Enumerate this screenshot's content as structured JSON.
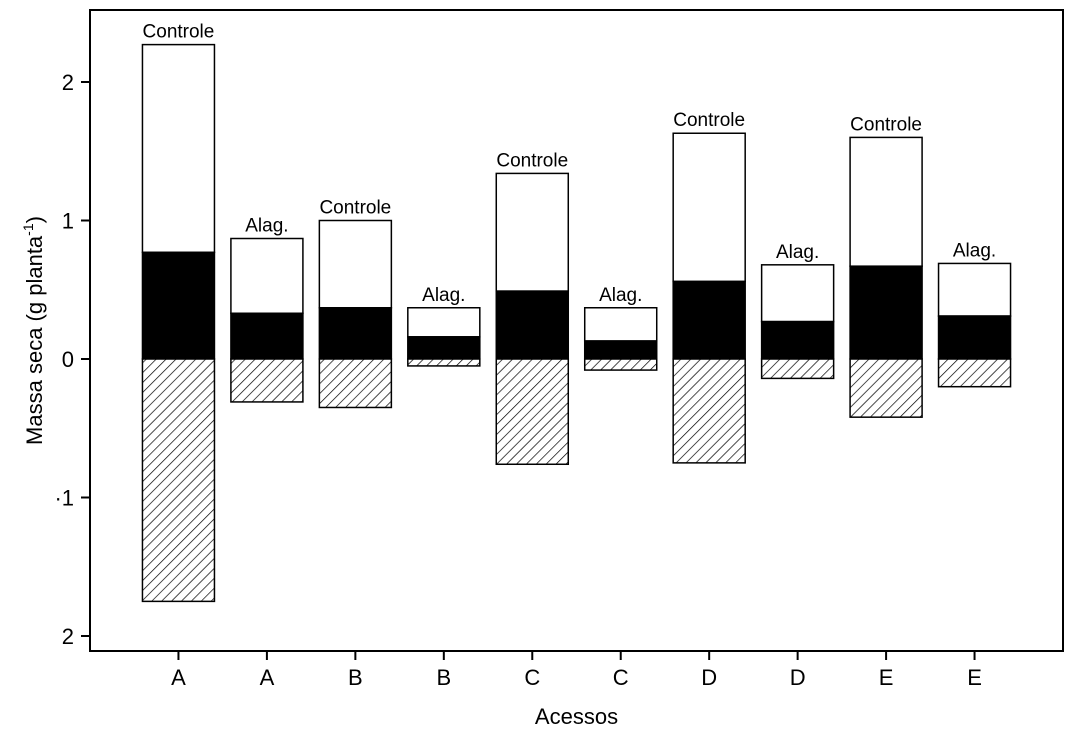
{
  "chart_data": {
    "type": "bar",
    "stacked": true,
    "xlabel": "Acessos",
    "ylabel": "Massa seca (g planta",
    "ylabel_sup": "-1",
    "ylabel_close": ")",
    "ylim": [
      -2.1,
      2.5
    ],
    "yticks": [
      {
        "value": 2,
        "label": "2"
      },
      {
        "value": 1,
        "label": "1"
      },
      {
        "value": 0,
        "label": "0"
      },
      {
        "value": -1,
        "label": "·1"
      },
      {
        "value": -2,
        "label": "2"
      }
    ],
    "categories": [
      "A",
      "A",
      "B",
      "B",
      "C",
      "C",
      "D",
      "D",
      "E",
      "E"
    ],
    "bar_labels": [
      "Controle",
      "Alag.",
      "Controle",
      "Alag.",
      "Controle",
      "Alag.",
      "Controle",
      "Alag.",
      "Controle",
      "Alag."
    ],
    "segments": {
      "black": [
        0.77,
        0.33,
        0.37,
        0.16,
        0.49,
        0.13,
        0.56,
        0.27,
        0.67,
        0.31
      ],
      "total_top": [
        2.27,
        0.87,
        1.0,
        0.37,
        1.34,
        0.37,
        1.63,
        0.68,
        1.6,
        0.69
      ],
      "hatched_below": [
        -1.75,
        -0.31,
        -0.35,
        -0.05,
        -0.76,
        -0.08,
        -0.75,
        -0.14,
        -0.42,
        -0.2
      ]
    },
    "colors": {
      "black": "#000000",
      "white": "#ffffff",
      "hatch": "#000000"
    },
    "grid": false
  }
}
